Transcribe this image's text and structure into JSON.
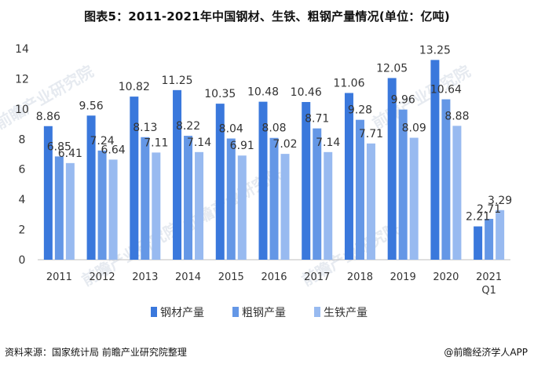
{
  "title": "图表5：2011-2021年中国钢材、生铁、粗钢产量情况(单位：亿吨)",
  "source": "资料来源：国家统计局 前瞻产业研究院整理",
  "brand": "@前瞻经济学人APP",
  "watermark": "前瞻产业研究院",
  "chart_data": {
    "type": "bar",
    "title": "图表5：2011-2021年中国钢材、生铁、粗钢产量情况(单位：亿吨)",
    "unit": "亿吨",
    "categories": [
      "2011",
      "2012",
      "2013",
      "2014",
      "2015",
      "2016",
      "2017",
      "2018",
      "2019",
      "2020",
      "2021"
    ],
    "category_sublabels": [
      "",
      "",
      "",
      "",
      "",
      "",
      "",
      "",
      "",
      "",
      "Q1"
    ],
    "ylim": [
      0,
      14
    ],
    "yticks": [
      0,
      2,
      4,
      6,
      8,
      10,
      12,
      14
    ],
    "grid": false,
    "legend_position": "bottom",
    "series": [
      {
        "name": "钢材产量",
        "color": "#3a78dc",
        "values": [
          8.86,
          9.56,
          10.82,
          11.25,
          10.35,
          10.48,
          10.46,
          11.06,
          12.05,
          13.25,
          2.21
        ],
        "labels": [
          "8.86",
          "9.56",
          "10.82",
          "11.25",
          "10.35",
          "10.48",
          "10.46",
          "11.06",
          "12.05",
          "13.25",
          "2.21"
        ]
      },
      {
        "name": "粗钢产量",
        "color": "#6497e6",
        "values": [
          6.85,
          7.24,
          8.13,
          8.22,
          8.04,
          8.08,
          8.71,
          9.28,
          9.96,
          10.64,
          2.71
        ],
        "labels": [
          "6.85",
          "7.24",
          "8.13",
          "8.22",
          "8.04",
          "8.08",
          "8.71",
          "9.28",
          "9.96",
          "10.64",
          "2.71"
        ]
      },
      {
        "name": "生铁产量",
        "color": "#98baf0",
        "values": [
          6.41,
          6.64,
          7.11,
          7.14,
          6.91,
          7.02,
          7.14,
          7.71,
          8.09,
          8.88,
          3.29
        ],
        "labels": [
          "6.41",
          "6.64",
          "7.11",
          "7.14",
          "6.91",
          "7.02",
          "7.14",
          "7.71",
          "8.09",
          "8.88",
          "3.29"
        ]
      }
    ]
  }
}
